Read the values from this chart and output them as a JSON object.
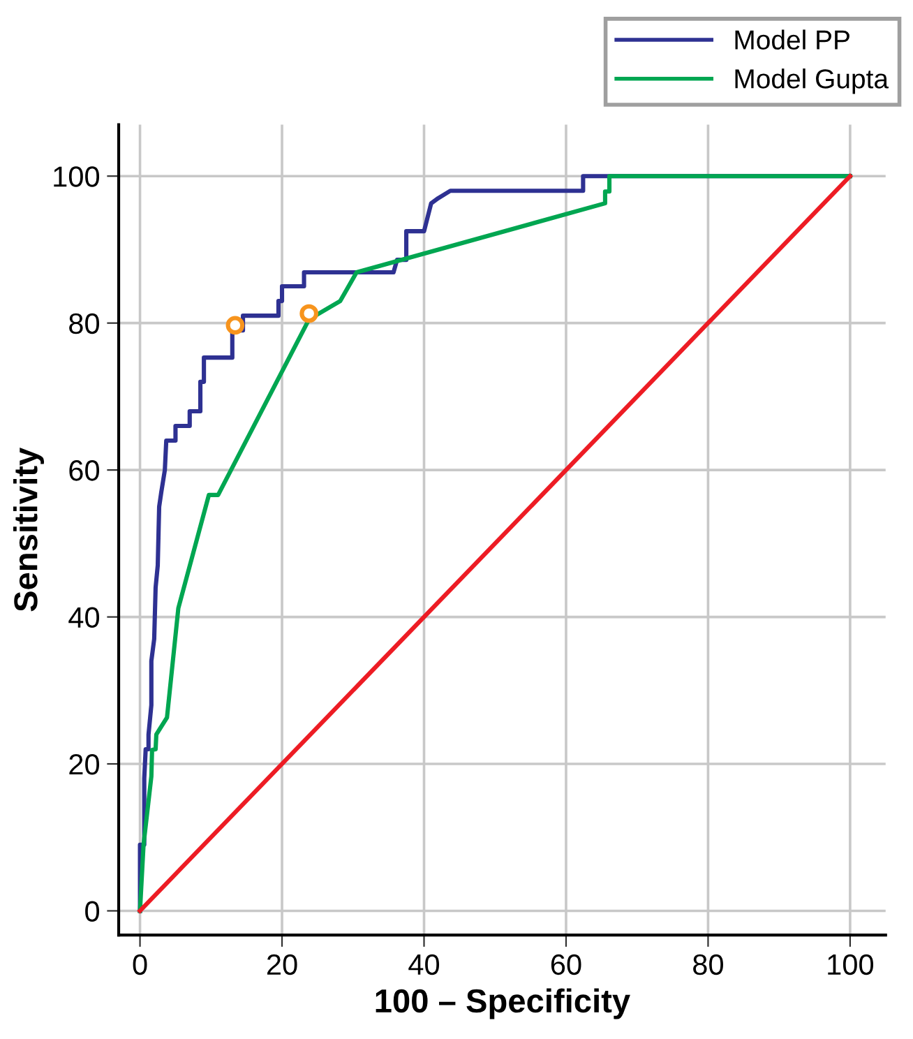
{
  "chart_data": {
    "type": "line",
    "xlabel": "100 – Specificity",
    "ylabel": "Sensitivity",
    "xlim": [
      -3,
      105
    ],
    "ylim": [
      -3.3,
      107
    ],
    "xticks": [
      0,
      20,
      40,
      60,
      80,
      100
    ],
    "yticks": [
      0,
      20,
      40,
      60,
      80,
      100
    ],
    "grid": true,
    "legend": "top right",
    "marker": "none",
    "line_style": "solid",
    "series": [
      {
        "name": "Model PP",
        "color": "#2e3192",
        "x": [
          0,
          0,
          0.6,
          0.6,
          0.8,
          1.2,
          1.2,
          1.6,
          1.6,
          2,
          2.2,
          2.5,
          2.7,
          3,
          3.5,
          3.7,
          5,
          5,
          7,
          7,
          8.5,
          8.5,
          9,
          9,
          13,
          13,
          14.5,
          14.5,
          19.5,
          19.5,
          20,
          20,
          23.1,
          23.1,
          35.7,
          36.2,
          37.5,
          37.5,
          40,
          41,
          42,
          43.7,
          62.4,
          62.4,
          100
        ],
        "values": [
          0,
          9,
          9,
          18,
          22,
          22,
          24,
          28,
          34,
          37,
          44,
          47,
          55,
          57,
          60,
          64,
          64,
          66,
          66,
          68,
          68,
          72,
          72,
          75.3,
          75.3,
          79,
          79,
          81,
          81,
          83,
          83,
          85,
          85,
          86.9,
          86.9,
          88.6,
          88.6,
          92.5,
          92.5,
          96.3,
          97,
          98,
          98,
          100,
          100
        ]
      },
      {
        "name": "Model Gupta",
        "color": "#00a651",
        "x": [
          0,
          0.5,
          1.6,
          1.7,
          2.2,
          2.3,
          3.8,
          5.4,
          9.7,
          11,
          23.8,
          28.2,
          30.5,
          65.5,
          65.5,
          66.1,
          66.1,
          100
        ],
        "values": [
          0,
          9,
          18.3,
          21.9,
          22,
          24,
          26.3,
          41.2,
          56.6,
          56.6,
          80.5,
          83,
          86.9,
          96.3,
          97.9,
          97.9,
          100,
          100
        ]
      },
      {
        "color": "#ed1c24",
        "x": [
          0,
          100
        ],
        "values": [
          0,
          100
        ]
      },
      {
        "type": "scatter",
        "color": "#f7941d",
        "marker": "circle",
        "x": [
          13.4,
          23.8
        ],
        "values": [
          79.7,
          81.3
        ]
      }
    ]
  }
}
